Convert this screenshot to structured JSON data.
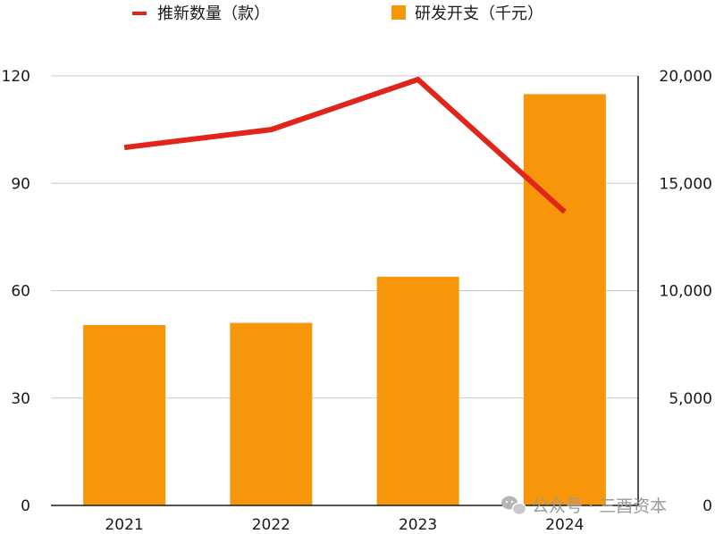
{
  "chart_data": {
    "type": "bar+line",
    "categories": [
      "2021",
      "2022",
      "2023",
      "2024"
    ],
    "series": [
      {
        "name": "研发开支（千元）",
        "kind": "bar",
        "axis": "right",
        "color": "#F7960A",
        "values": [
          8400,
          8500,
          10650,
          19150
        ]
      },
      {
        "name": "推新数量（款）",
        "kind": "line",
        "axis": "left",
        "color": "#E0261B",
        "values": [
          100,
          105,
          119,
          82
        ]
      }
    ],
    "left_axis": {
      "min": 0,
      "max": 120,
      "ticks": [
        "0",
        "30",
        "60",
        "90",
        "120"
      ]
    },
    "right_axis": {
      "min": 0,
      "max": 20000,
      "ticks": [
        "0",
        "5,000",
        "10,000",
        "15,000",
        "20,000"
      ]
    },
    "legend_position": "top",
    "grid": true
  },
  "watermark": {
    "text": "公众号 · 三酉资本"
  }
}
